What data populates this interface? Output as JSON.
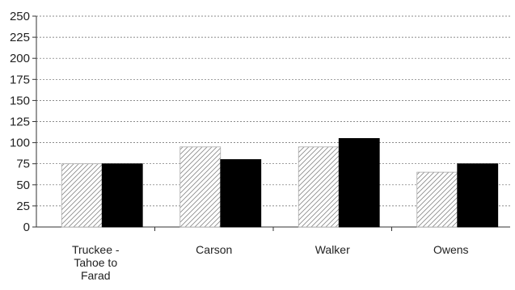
{
  "chart_data": {
    "type": "bar",
    "title": "",
    "xlabel": "",
    "ylabel": "",
    "categories": [
      [
        "Truckee -",
        "Tahoe to",
        "Farad"
      ],
      [
        "Carson"
      ],
      [
        "Walker"
      ],
      [
        "Owens"
      ]
    ],
    "series": [
      {
        "values": [
          75,
          95,
          95,
          65
        ],
        "color": "#ffffff",
        "pattern": "diagonal-hatch"
      },
      {
        "values": [
          75,
          80,
          105,
          75
        ],
        "color": "#000000",
        "pattern": "solid"
      }
    ],
    "yticks": [
      "250",
      "225",
      "200",
      "175",
      "150",
      "125",
      "100",
      "75",
      "50",
      "25",
      "0"
    ],
    "ylim": [
      0,
      250
    ],
    "grid": "horizontal dashed",
    "legend": "none"
  }
}
